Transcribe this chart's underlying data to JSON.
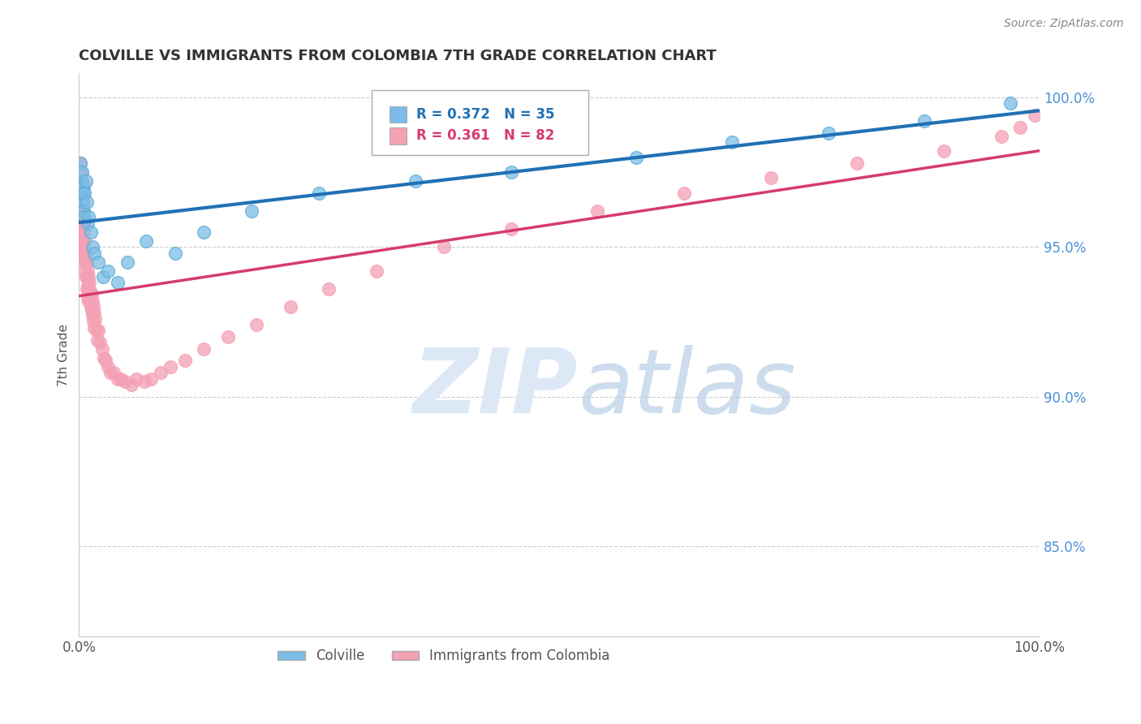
{
  "title": "COLVILLE VS IMMIGRANTS FROM COLOMBIA 7TH GRADE CORRELATION CHART",
  "source": "Source: ZipAtlas.com",
  "ylabel": "7th Grade",
  "xlim": [
    0.0,
    1.0
  ],
  "ylim": [
    0.82,
    1.008
  ],
  "right_yticks": [
    0.85,
    0.9,
    0.95,
    1.0
  ],
  "right_yticklabels": [
    "85.0%",
    "90.0%",
    "95.0%",
    "100.0%"
  ],
  "colville_R": 0.372,
  "colville_N": 35,
  "colombia_R": 0.361,
  "colombia_N": 82,
  "colville_color": "#7bbde8",
  "colombia_color": "#f4a0b5",
  "colville_line_color": "#2171b5",
  "colombia_line_color": "#d63b6e",
  "background_color": "#ffffff",
  "grid_color": "#cccccc",
  "colville_x": [
    0.001,
    0.002,
    0.002,
    0.003,
    0.003,
    0.004,
    0.004,
    0.005,
    0.005,
    0.006,
    0.006,
    0.007,
    0.008,
    0.009,
    0.01,
    0.012,
    0.014,
    0.016,
    0.02,
    0.025,
    0.03,
    0.04,
    0.05,
    0.07,
    0.1,
    0.13,
    0.18,
    0.25,
    0.35,
    0.45,
    0.58,
    0.68,
    0.78,
    0.88,
    0.97
  ],
  "colville_y": [
    0.978,
    0.972,
    0.968,
    0.975,
    0.97,
    0.965,
    0.968,
    0.97,
    0.962,
    0.968,
    0.96,
    0.972,
    0.965,
    0.958,
    0.96,
    0.955,
    0.95,
    0.948,
    0.945,
    0.94,
    0.942,
    0.938,
    0.945,
    0.952,
    0.948,
    0.955,
    0.962,
    0.968,
    0.972,
    0.975,
    0.98,
    0.985,
    0.988,
    0.992,
    0.998
  ],
  "colombia_x": [
    0.001,
    0.001,
    0.002,
    0.002,
    0.002,
    0.003,
    0.003,
    0.003,
    0.003,
    0.004,
    0.004,
    0.004,
    0.004,
    0.005,
    0.005,
    0.005,
    0.005,
    0.006,
    0.006,
    0.006,
    0.006,
    0.007,
    0.007,
    0.007,
    0.008,
    0.008,
    0.008,
    0.009,
    0.009,
    0.009,
    0.01,
    0.01,
    0.01,
    0.011,
    0.011,
    0.012,
    0.012,
    0.013,
    0.013,
    0.014,
    0.014,
    0.015,
    0.015,
    0.016,
    0.016,
    0.017,
    0.018,
    0.019,
    0.02,
    0.022,
    0.024,
    0.026,
    0.028,
    0.03,
    0.033,
    0.036,
    0.04,
    0.044,
    0.048,
    0.055,
    0.06,
    0.068,
    0.075,
    0.085,
    0.095,
    0.11,
    0.13,
    0.155,
    0.185,
    0.22,
    0.26,
    0.31,
    0.38,
    0.45,
    0.54,
    0.63,
    0.72,
    0.81,
    0.9,
    0.96,
    0.98,
    0.995
  ],
  "colombia_y": [
    0.978,
    0.972,
    0.975,
    0.97,
    0.965,
    0.972,
    0.968,
    0.962,
    0.958,
    0.965,
    0.96,
    0.955,
    0.952,
    0.958,
    0.955,
    0.95,
    0.948,
    0.952,
    0.948,
    0.945,
    0.942,
    0.948,
    0.945,
    0.94,
    0.945,
    0.94,
    0.936,
    0.942,
    0.937,
    0.933,
    0.94,
    0.936,
    0.932,
    0.938,
    0.933,
    0.935,
    0.93,
    0.934,
    0.929,
    0.932,
    0.927,
    0.93,
    0.925,
    0.928,
    0.923,
    0.926,
    0.922,
    0.919,
    0.922,
    0.918,
    0.916,
    0.913,
    0.912,
    0.91,
    0.908,
    0.908,
    0.906,
    0.906,
    0.905,
    0.904,
    0.906,
    0.905,
    0.906,
    0.908,
    0.91,
    0.912,
    0.916,
    0.92,
    0.924,
    0.93,
    0.936,
    0.942,
    0.95,
    0.956,
    0.962,
    0.968,
    0.973,
    0.978,
    0.982,
    0.987,
    0.99,
    0.994
  ]
}
